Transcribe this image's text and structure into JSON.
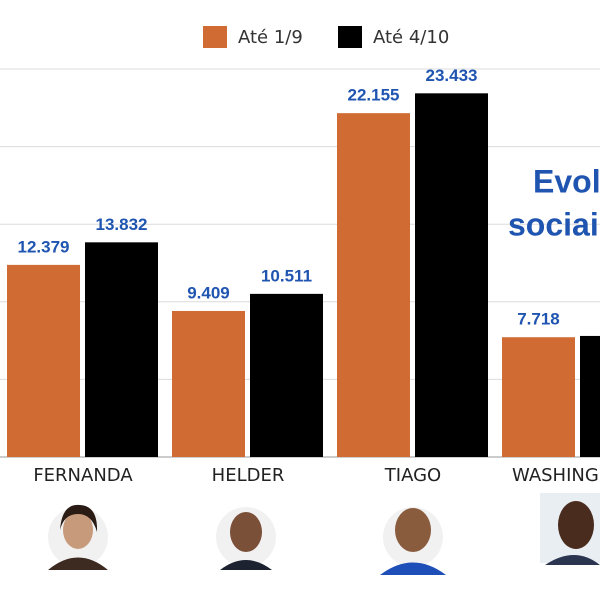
{
  "chart_data": {
    "type": "bar",
    "title_lines": [
      "Evolu",
      "sociais"
    ],
    "categories": [
      "FERNANDA",
      "HELDER",
      "TIAGO",
      "WASHING"
    ],
    "series": [
      {
        "name": "Até 1/9",
        "color": "#cf6b33",
        "values": [
          12379,
          9409,
          22155,
          7718
        ],
        "value_labels": [
          "12.379",
          "9.409",
          "22.155",
          "7.718"
        ]
      },
      {
        "name": "Até 4/10",
        "color": "#000000",
        "values": [
          13832,
          10511,
          23433,
          7800
        ],
        "value_labels": [
          "13.832",
          "10.511",
          "23.433",
          null
        ]
      }
    ],
    "ylim": [
      0,
      25000
    ],
    "yticks": [
      0,
      5000,
      10000,
      15000,
      20000,
      25000
    ],
    "grid": true
  }
}
